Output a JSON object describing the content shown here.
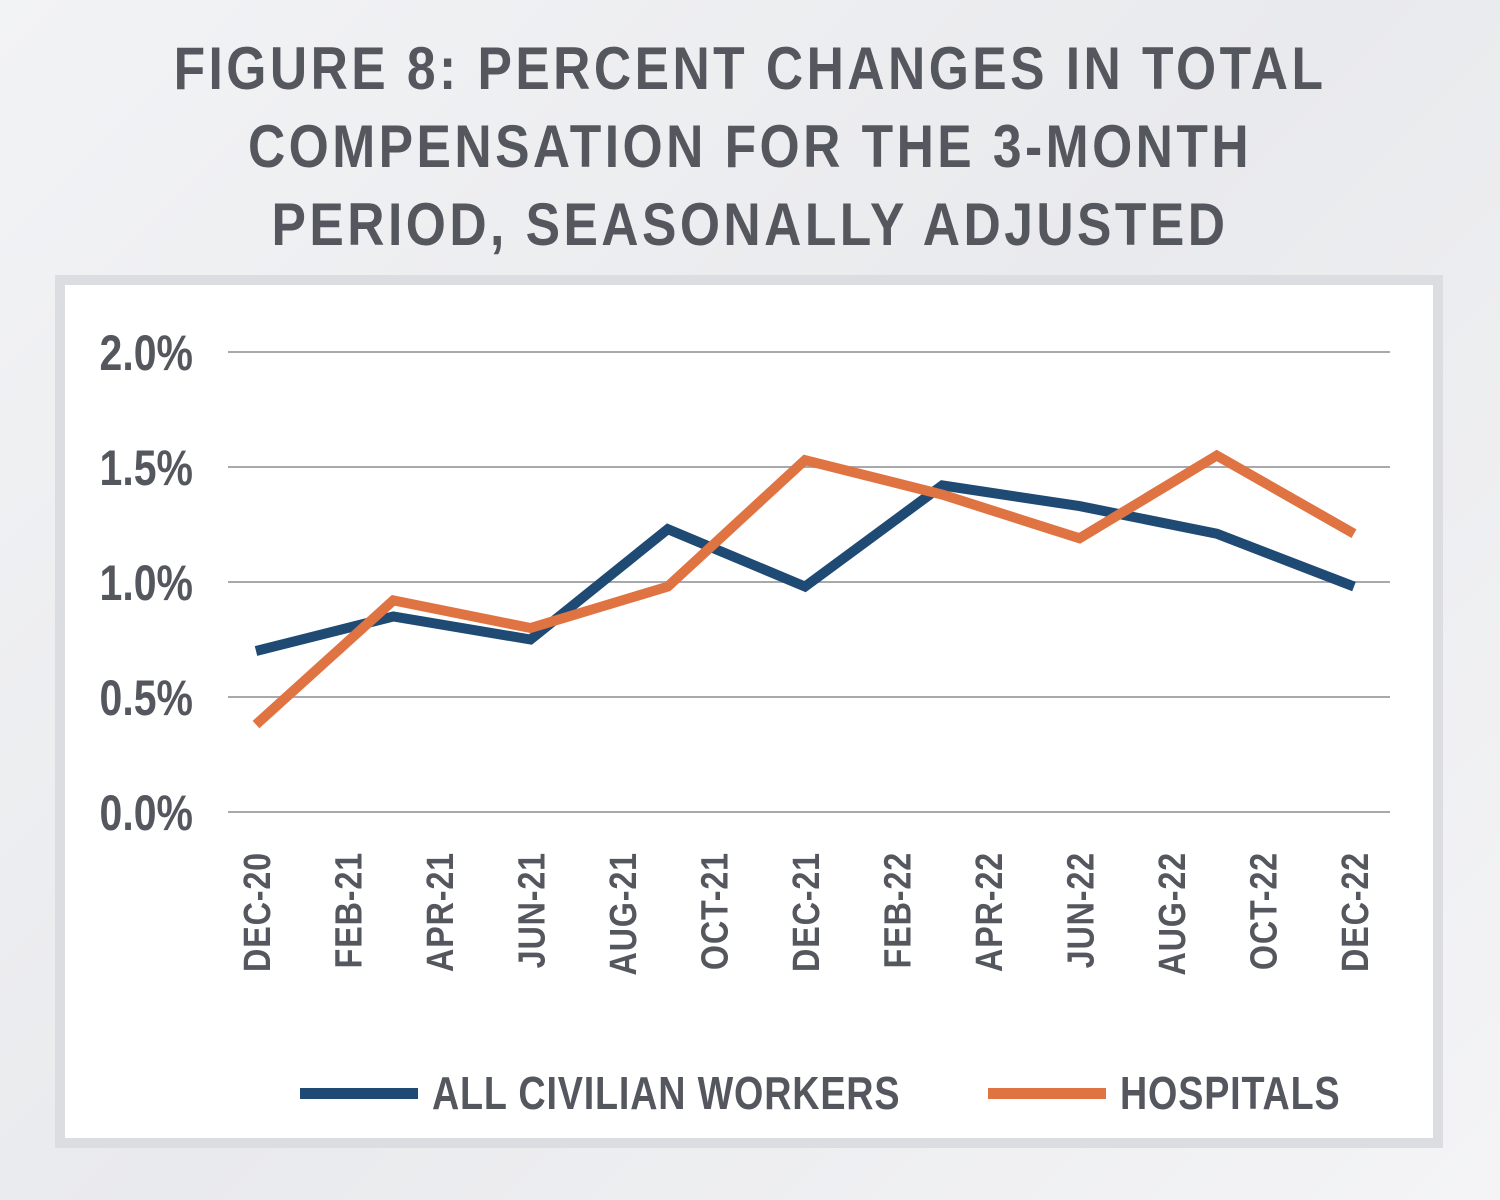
{
  "title_lines": [
    "FIGURE 8: PERCENT CHANGES IN TOTAL",
    "COMPENSATION FOR THE 3-MONTH",
    "PERIOD, SEASONALLY ADJUSTED"
  ],
  "colors": {
    "all_civilian_workers": "#1f4a73",
    "hospitals": "#e07342",
    "grid": "#a8a9ad",
    "text": "#55575e"
  },
  "chart_data": {
    "type": "line",
    "title": "FIGURE 8: PERCENT CHANGES IN TOTAL COMPENSATION FOR THE 3-MONTH PERIOD, SEASONALLY ADJUSTED",
    "x_labels": [
      "DEC-20",
      "FEB-21",
      "APR-21",
      "JUN-21",
      "AUG-21",
      "OCT-21",
      "DEC-21",
      "FEB-22",
      "APR-22",
      "JUN-22",
      "AUG-22",
      "OCT-22",
      "DEC-22"
    ],
    "points_x": [
      "Dec-20",
      "Mar-21",
      "Jun-21",
      "Sep-21",
      "Dec-21",
      "Mar-22",
      "Jun-22",
      "Sep-22",
      "Dec-22"
    ],
    "series": [
      {
        "name": "ALL CIVILIAN WORKERS",
        "values": [
          0.7,
          0.85,
          0.75,
          1.23,
          0.98,
          1.42,
          1.33,
          1.21,
          0.98
        ]
      },
      {
        "name": "HOSPITALS",
        "values": [
          0.38,
          0.92,
          0.8,
          0.98,
          1.53,
          1.38,
          1.19,
          1.55,
          1.21
        ]
      }
    ],
    "y_ticks": [
      "2.0%",
      "1.5%",
      "1.0%",
      "0.5%",
      "0.0%"
    ],
    "ylim": [
      0,
      2.0
    ],
    "grid": true,
    "legend": "bottom"
  }
}
